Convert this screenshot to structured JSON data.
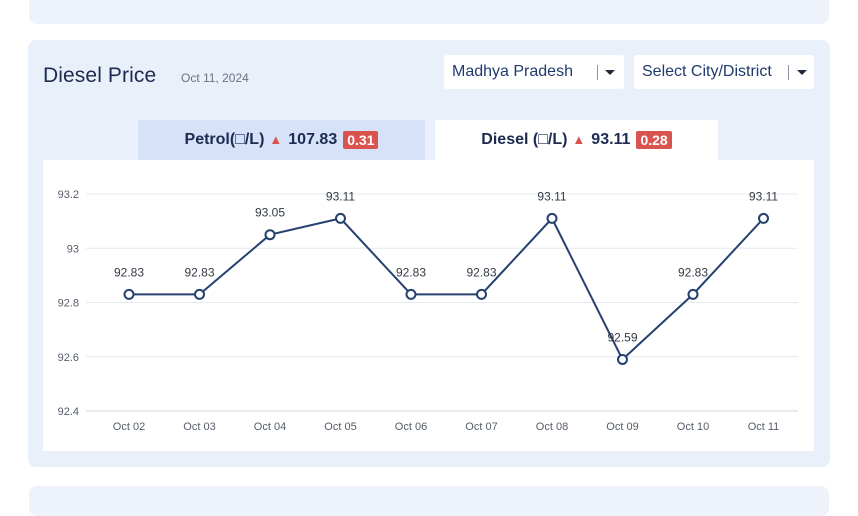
{
  "header": {
    "title": "Diesel Price",
    "date": "Oct 11, 2024"
  },
  "filters": {
    "state": "Madhya Pradesh",
    "city": "Select City/District"
  },
  "tabs": [
    {
      "label": "Petrol(□/L)",
      "price": "107.83",
      "change": "0.31",
      "direction": "up",
      "active": false
    },
    {
      "label": "Diesel (□/L)",
      "price": "93.11",
      "change": "0.28",
      "direction": "up",
      "active": true
    }
  ],
  "colors": {
    "line": "#25416f",
    "up_badge": "#d9534f",
    "active_tab": "#ffffff",
    "inactive_tab": "#d5e2f7"
  },
  "chart_data": {
    "type": "line",
    "title": "",
    "xlabel": "",
    "ylabel": "",
    "categories": [
      "Oct 02",
      "Oct 03",
      "Oct 04",
      "Oct 05",
      "Oct 06",
      "Oct 07",
      "Oct 08",
      "Oct 09",
      "Oct 10",
      "Oct 11"
    ],
    "values": [
      92.83,
      92.83,
      93.05,
      93.11,
      92.83,
      92.83,
      93.11,
      92.59,
      92.83,
      93.11
    ],
    "data_labels": [
      "92.83",
      "92.83",
      "93.05",
      "93.11",
      "92.83",
      "92.83",
      "93.11",
      "92.59",
      "92.83",
      "93.11"
    ],
    "yticks": [
      "93.2",
      "93",
      "92.8",
      "92.6",
      "92.4"
    ],
    "ylim": [
      92.4,
      93.2
    ],
    "grid": true,
    "legend": "none"
  }
}
